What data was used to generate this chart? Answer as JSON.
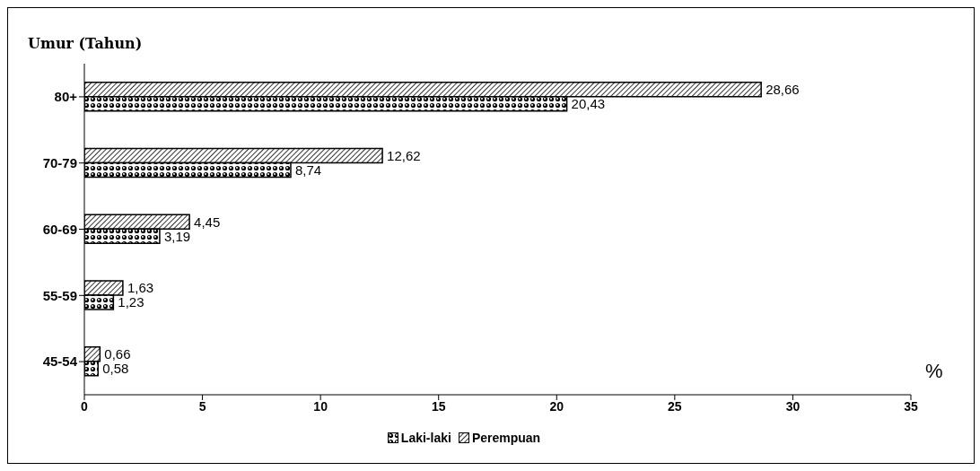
{
  "chart_data": {
    "type": "bar",
    "orientation": "horizontal",
    "ylabel": "Umur (Tahun)",
    "xlabel": "%",
    "categories": [
      "80+",
      "70-79",
      "60-69",
      "55-59",
      "45-54"
    ],
    "series": [
      {
        "name": "Laki-laki",
        "color": "#000000",
        "values": [
          20.43,
          8.74,
          3.19,
          1.23,
          0.58
        ],
        "value_labels": [
          "20,43",
          "8,74",
          "3,19",
          "1,23",
          "0,58"
        ]
      },
      {
        "name": "Perempuan",
        "color": "#000000",
        "values": [
          28.66,
          12.62,
          4.45,
          1.63,
          0.66
        ],
        "value_labels": [
          "28,66",
          "12,62",
          "4,45",
          "1,63",
          "0,66"
        ]
      }
    ],
    "xlim": [
      0,
      35
    ],
    "xticks": [
      0,
      5,
      10,
      15,
      20,
      25,
      30,
      35
    ],
    "grid": false,
    "legend": "bottom"
  }
}
